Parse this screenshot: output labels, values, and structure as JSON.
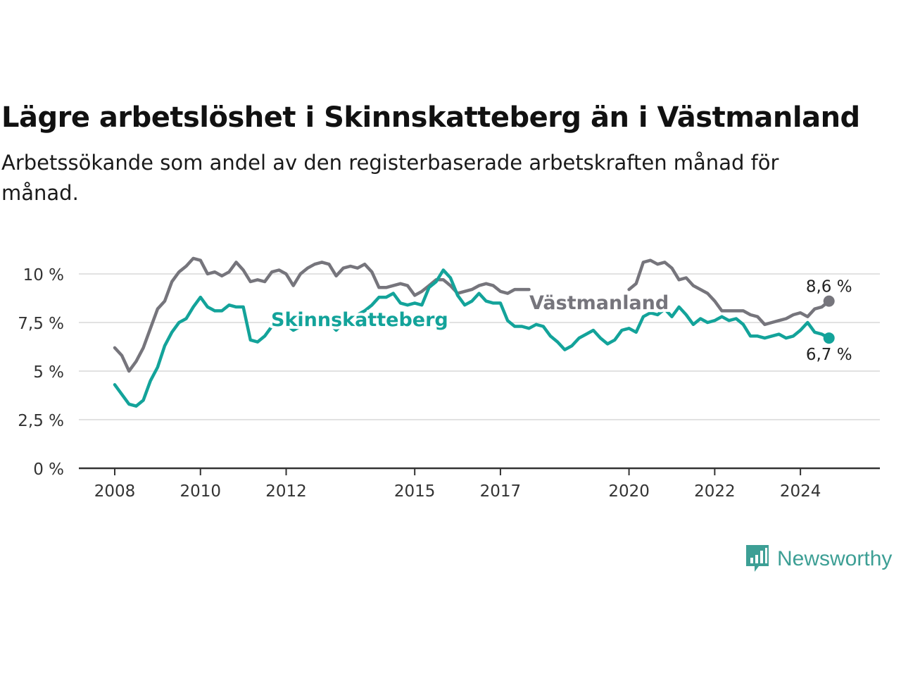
{
  "header": {
    "title": "Lägre arbetslöshet i Skinnskatteberg än i Västmanland",
    "subtitle": "Arbetssökande som andel av den registerbaserade arbetskraften månad för månad."
  },
  "brand": {
    "name": "Newsworthy",
    "color": "#3d9f95"
  },
  "chart_data": {
    "type": "line",
    "title": "Lägre arbetslöshet i Skinnskatteberg än i Västmanland",
    "subtitle": "Arbetssökande som andel av den registerbaserade arbetskraften månad för månad.",
    "xlabel": "",
    "ylabel": "",
    "xlim": [
      "2008-01",
      "2025-01"
    ],
    "ylim": [
      0,
      10
    ],
    "y_ticks": [
      0,
      2.5,
      5,
      7.5,
      10
    ],
    "y_tick_labels": [
      "0 %",
      "2,5 %",
      "5 %",
      "7,5 %",
      "10 %"
    ],
    "x_ticks": [
      "2008-01",
      "2010-01",
      "2012-01",
      "2015-01",
      "2017-01",
      "2020-01",
      "2022-01",
      "2024-01"
    ],
    "x_tick_labels": [
      "2008",
      "2010",
      "2012",
      "2015",
      "2017",
      "2020",
      "2022",
      "2024"
    ],
    "grid": true,
    "legend": "inline labels",
    "series": [
      {
        "name": "Västmanland",
        "color": "#76757c",
        "end_label": "8,6 %",
        "points": [
          [
            "2008-01",
            6.2
          ],
          [
            "2008-03",
            5.8
          ],
          [
            "2008-05",
            5.0
          ],
          [
            "2008-07",
            5.5
          ],
          [
            "2008-09",
            6.2
          ],
          [
            "2008-11",
            7.2
          ],
          [
            "2009-01",
            8.2
          ],
          [
            "2009-03",
            8.6
          ],
          [
            "2009-05",
            9.6
          ],
          [
            "2009-07",
            10.1
          ],
          [
            "2009-09",
            10.4
          ],
          [
            "2009-11",
            10.8
          ],
          [
            "2010-01",
            10.7
          ],
          [
            "2010-03",
            10.0
          ],
          [
            "2010-05",
            10.1
          ],
          [
            "2010-07",
            9.9
          ],
          [
            "2010-09",
            10.1
          ],
          [
            "2010-11",
            10.6
          ],
          [
            "2011-01",
            10.2
          ],
          [
            "2011-03",
            9.6
          ],
          [
            "2011-05",
            9.7
          ],
          [
            "2011-07",
            9.6
          ],
          [
            "2011-09",
            10.1
          ],
          [
            "2011-11",
            10.2
          ],
          [
            "2012-01",
            10.0
          ],
          [
            "2012-03",
            9.4
          ],
          [
            "2012-05",
            10.0
          ],
          [
            "2012-07",
            10.3
          ],
          [
            "2012-09",
            10.5
          ],
          [
            "2012-11",
            10.6
          ],
          [
            "2013-01",
            10.5
          ],
          [
            "2013-03",
            9.9
          ],
          [
            "2013-05",
            10.3
          ],
          [
            "2013-07",
            10.4
          ],
          [
            "2013-09",
            10.3
          ],
          [
            "2013-11",
            10.5
          ],
          [
            "2014-01",
            10.1
          ],
          [
            "2014-03",
            9.3
          ],
          [
            "2014-05",
            9.3
          ],
          [
            "2014-07",
            9.4
          ],
          [
            "2014-09",
            9.5
          ],
          [
            "2014-11",
            9.4
          ],
          [
            "2015-01",
            8.9
          ],
          [
            "2015-03",
            9.1
          ],
          [
            "2015-05",
            9.4
          ],
          [
            "2015-07",
            9.7
          ],
          [
            "2015-09",
            9.7
          ],
          [
            "2015-11",
            9.4
          ],
          [
            "2016-01",
            9.0
          ],
          [
            "2016-03",
            9.1
          ],
          [
            "2016-05",
            9.2
          ],
          [
            "2016-07",
            9.4
          ],
          [
            "2016-09",
            9.5
          ],
          [
            "2016-11",
            9.4
          ],
          [
            "2017-01",
            9.1
          ],
          [
            "2017-03",
            9.0
          ],
          [
            "2017-05",
            9.2
          ],
          [
            "2017-07",
            9.2
          ],
          [
            "2017-09",
            9.2
          ],
          [
            "2020-01",
            9.2
          ],
          [
            "2020-03",
            9.5
          ],
          [
            "2020-05",
            10.6
          ],
          [
            "2020-07",
            10.7
          ],
          [
            "2020-09",
            10.5
          ],
          [
            "2020-11",
            10.6
          ],
          [
            "2021-01",
            10.3
          ],
          [
            "2021-03",
            9.7
          ],
          [
            "2021-05",
            9.8
          ],
          [
            "2021-07",
            9.4
          ],
          [
            "2021-09",
            9.2
          ],
          [
            "2021-11",
            9.0
          ],
          [
            "2022-01",
            8.6
          ],
          [
            "2022-03",
            8.1
          ],
          [
            "2022-05",
            8.1
          ],
          [
            "2022-07",
            8.1
          ],
          [
            "2022-09",
            8.1
          ],
          [
            "2022-11",
            7.9
          ],
          [
            "2023-01",
            7.8
          ],
          [
            "2023-03",
            7.4
          ],
          [
            "2023-05",
            7.5
          ],
          [
            "2023-07",
            7.6
          ],
          [
            "2023-09",
            7.7
          ],
          [
            "2023-11",
            7.9
          ],
          [
            "2024-01",
            8.0
          ],
          [
            "2024-03",
            7.8
          ],
          [
            "2024-05",
            8.2
          ],
          [
            "2024-07",
            8.3
          ],
          [
            "2024-09",
            8.6
          ]
        ]
      },
      {
        "name": "Skinnskatteberg",
        "color": "#13a39a",
        "end_label": "6,7 %",
        "points": [
          [
            "2008-01",
            4.3
          ],
          [
            "2008-03",
            3.8
          ],
          [
            "2008-05",
            3.3
          ],
          [
            "2008-07",
            3.2
          ],
          [
            "2008-09",
            3.5
          ],
          [
            "2008-11",
            4.5
          ],
          [
            "2009-01",
            5.2
          ],
          [
            "2009-03",
            6.3
          ],
          [
            "2009-05",
            7.0
          ],
          [
            "2009-07",
            7.5
          ],
          [
            "2009-09",
            7.7
          ],
          [
            "2009-11",
            8.3
          ],
          [
            "2010-01",
            8.8
          ],
          [
            "2010-03",
            8.3
          ],
          [
            "2010-05",
            8.1
          ],
          [
            "2010-07",
            8.1
          ],
          [
            "2010-09",
            8.4
          ],
          [
            "2010-11",
            8.3
          ],
          [
            "2011-01",
            8.3
          ],
          [
            "2011-03",
            6.6
          ],
          [
            "2011-05",
            6.5
          ],
          [
            "2011-07",
            6.8
          ],
          [
            "2011-09",
            7.3
          ],
          [
            "2011-11",
            7.5
          ],
          [
            "2012-01",
            7.4
          ],
          [
            "2012-03",
            7.1
          ],
          [
            "2012-05",
            7.3
          ],
          [
            "2012-07",
            7.5
          ],
          [
            "2012-09",
            7.6
          ],
          [
            "2012-11",
            7.7
          ],
          [
            "2013-01",
            7.5
          ],
          [
            "2013-03",
            7.1
          ],
          [
            "2013-05",
            7.5
          ],
          [
            "2013-07",
            7.7
          ],
          [
            "2013-09",
            7.9
          ],
          [
            "2013-11",
            8.1
          ],
          [
            "2014-01",
            8.4
          ],
          [
            "2014-03",
            8.8
          ],
          [
            "2014-05",
            8.8
          ],
          [
            "2014-07",
            9.0
          ],
          [
            "2014-09",
            8.5
          ],
          [
            "2014-11",
            8.4
          ],
          [
            "2015-01",
            8.5
          ],
          [
            "2015-03",
            8.4
          ],
          [
            "2015-05",
            9.3
          ],
          [
            "2015-07",
            9.6
          ],
          [
            "2015-09",
            10.2
          ],
          [
            "2015-11",
            9.8
          ],
          [
            "2016-01",
            8.9
          ],
          [
            "2016-03",
            8.4
          ],
          [
            "2016-05",
            8.6
          ],
          [
            "2016-07",
            9.0
          ],
          [
            "2016-09",
            8.6
          ],
          [
            "2016-11",
            8.5
          ],
          [
            "2017-01",
            8.5
          ],
          [
            "2017-03",
            7.6
          ],
          [
            "2017-05",
            7.3
          ],
          [
            "2017-07",
            7.3
          ],
          [
            "2017-09",
            7.2
          ],
          [
            "2017-11",
            7.4
          ],
          [
            "2018-01",
            7.3
          ],
          [
            "2018-03",
            6.8
          ],
          [
            "2018-05",
            6.5
          ],
          [
            "2018-07",
            6.1
          ],
          [
            "2018-09",
            6.3
          ],
          [
            "2018-11",
            6.7
          ],
          [
            "2019-01",
            6.9
          ],
          [
            "2019-03",
            7.1
          ],
          [
            "2019-05",
            6.7
          ],
          [
            "2019-07",
            6.4
          ],
          [
            "2019-09",
            6.6
          ],
          [
            "2019-11",
            7.1
          ],
          [
            "2020-01",
            7.2
          ],
          [
            "2020-03",
            7.0
          ],
          [
            "2020-05",
            7.8
          ],
          [
            "2020-07",
            8.0
          ],
          [
            "2020-09",
            7.9
          ],
          [
            "2020-11",
            8.2
          ],
          [
            "2021-01",
            7.8
          ],
          [
            "2021-03",
            8.3
          ],
          [
            "2021-05",
            7.9
          ],
          [
            "2021-07",
            7.4
          ],
          [
            "2021-09",
            7.7
          ],
          [
            "2021-11",
            7.5
          ],
          [
            "2022-01",
            7.6
          ],
          [
            "2022-03",
            7.8
          ],
          [
            "2022-05",
            7.6
          ],
          [
            "2022-07",
            7.7
          ],
          [
            "2022-09",
            7.4
          ],
          [
            "2022-11",
            6.8
          ],
          [
            "2023-01",
            6.8
          ],
          [
            "2023-03",
            6.7
          ],
          [
            "2023-05",
            6.8
          ],
          [
            "2023-07",
            6.9
          ],
          [
            "2023-09",
            6.7
          ],
          [
            "2023-11",
            6.8
          ],
          [
            "2024-01",
            7.1
          ],
          [
            "2024-03",
            7.5
          ],
          [
            "2024-05",
            7.0
          ],
          [
            "2024-07",
            6.9
          ],
          [
            "2024-09",
            6.7
          ]
        ]
      }
    ]
  }
}
